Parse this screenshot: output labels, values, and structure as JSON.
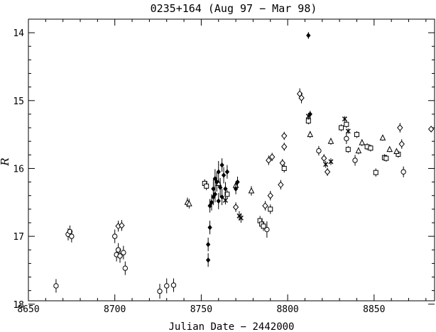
{
  "chart_data": {
    "type": "scatter",
    "title": "0235+164 (Aug 97 − Mar 98)",
    "xlabel": "Julian Date − 2442000",
    "ylabel": "R",
    "xlim": [
      8650,
      8885
    ],
    "ylim": [
      13.8,
      17.95
    ],
    "y_inverted": true,
    "grid": false,
    "x_ticks": [
      "8650",
      "8700",
      "8750",
      "8800",
      "8850"
    ],
    "y_ticks": [
      "14",
      "15",
      "16",
      "17",
      "18"
    ],
    "series": [
      {
        "marker": "circle",
        "points": [
          {
            "x": 8666,
            "y": 17.73,
            "err": 0.1
          },
          {
            "x": 8673,
            "y": 16.97,
            "err": 0.09
          },
          {
            "x": 8674,
            "y": 16.93,
            "err": 0.09
          },
          {
            "x": 8675,
            "y": 17.0,
            "err": 0.09
          },
          {
            "x": 8700,
            "y": 17.0,
            "err": 0.1
          },
          {
            "x": 8701,
            "y": 17.27,
            "err": 0.1
          },
          {
            "x": 8702,
            "y": 17.2,
            "err": 0.1
          },
          {
            "x": 8703,
            "y": 17.29,
            "err": 0.1
          },
          {
            "x": 8705,
            "y": 17.24,
            "err": 0.1
          },
          {
            "x": 8706,
            "y": 17.47,
            "err": 0.1
          },
          {
            "x": 8726,
            "y": 17.81,
            "err": 0.11
          },
          {
            "x": 8730,
            "y": 17.73,
            "err": 0.11
          },
          {
            "x": 8734,
            "y": 17.72,
            "err": 0.1
          },
          {
            "x": 8788,
            "y": 16.9,
            "err": 0.12
          },
          {
            "x": 8818,
            "y": 15.74,
            "err": 0.07
          },
          {
            "x": 8834,
            "y": 15.56,
            "err": 0.08
          },
          {
            "x": 8839,
            "y": 15.88,
            "err": 0.08
          },
          {
            "x": 8867,
            "y": 16.05,
            "err": 0.08
          }
        ]
      },
      {
        "marker": "diamond",
        "points": [
          {
            "x": 8702,
            "y": 16.85,
            "err": 0.08
          },
          {
            "x": 8704,
            "y": 16.84,
            "err": 0.08
          },
          {
            "x": 8770,
            "y": 16.57,
            "err": 0.07
          },
          {
            "x": 8787,
            "y": 16.55,
            "err": 0.07
          },
          {
            "x": 8789,
            "y": 15.88,
            "err": 0.07
          },
          {
            "x": 8790,
            "y": 16.4,
            "err": 0.07
          },
          {
            "x": 8791,
            "y": 15.83,
            "err": 0.06
          },
          {
            "x": 8796,
            "y": 16.24,
            "err": 0.07
          },
          {
            "x": 8797,
            "y": 15.92,
            "err": 0.06
          },
          {
            "x": 8798,
            "y": 15.52,
            "err": 0.06
          },
          {
            "x": 8798,
            "y": 15.68,
            "err": 0.06
          },
          {
            "x": 8807,
            "y": 14.9,
            "err": 0.08
          },
          {
            "x": 8808,
            "y": 14.96,
            "err": 0.08
          },
          {
            "x": 8821,
            "y": 15.85,
            "err": 0.06
          },
          {
            "x": 8823,
            "y": 16.05,
            "err": 0.06
          },
          {
            "x": 8865,
            "y": 15.4,
            "err": 0.07
          },
          {
            "x": 8866,
            "y": 15.64,
            "err": 0.07
          },
          {
            "x": 8883,
            "y": 15.42,
            "err": 0.04
          }
        ]
      },
      {
        "marker": "square",
        "points": [
          {
            "x": 8752,
            "y": 16.22,
            "err": 0.06
          },
          {
            "x": 8753,
            "y": 16.26,
            "err": 0.06
          },
          {
            "x": 8765,
            "y": 16.38,
            "err": 0.06
          },
          {
            "x": 8784,
            "y": 16.77,
            "err": 0.07
          },
          {
            "x": 8785,
            "y": 16.82,
            "err": 0.07
          },
          {
            "x": 8786,
            "y": 16.85,
            "err": 0.07
          },
          {
            "x": 8790,
            "y": 16.6,
            "err": 0.07
          },
          {
            "x": 8798,
            "y": 16.0,
            "err": 0.06
          },
          {
            "x": 8812,
            "y": 15.3,
            "err": 0.05
          },
          {
            "x": 8831,
            "y": 15.4,
            "err": 0.05
          },
          {
            "x": 8834,
            "y": 15.35,
            "err": 0.05
          },
          {
            "x": 8835,
            "y": 15.72,
            "err": 0.05
          },
          {
            "x": 8840,
            "y": 15.5,
            "err": 0.05
          },
          {
            "x": 8846,
            "y": 15.68,
            "err": 0.05
          },
          {
            "x": 8848,
            "y": 15.7,
            "err": 0.05
          },
          {
            "x": 8851,
            "y": 16.06,
            "err": 0.06
          },
          {
            "x": 8856,
            "y": 15.84,
            "err": 0.05
          },
          {
            "x": 8857,
            "y": 15.85,
            "err": 0.05
          },
          {
            "x": 8864,
            "y": 15.79,
            "err": 0.05
          }
        ]
      },
      {
        "marker": "triangle",
        "points": [
          {
            "x": 8742,
            "y": 16.5,
            "err": 0.07
          },
          {
            "x": 8743,
            "y": 16.52,
            "err": 0.07
          },
          {
            "x": 8760,
            "y": 16.22,
            "err": 0.06
          },
          {
            "x": 8770,
            "y": 16.25,
            "err": 0.06
          },
          {
            "x": 8779,
            "y": 16.33,
            "err": 0.07
          },
          {
            "x": 8813,
            "y": 15.5,
            "err": 0.05
          },
          {
            "x": 8825,
            "y": 15.6,
            "err": 0.05
          },
          {
            "x": 8841,
            "y": 15.74,
            "err": 0.05
          },
          {
            "x": 8843,
            "y": 15.62,
            "err": 0.05
          },
          {
            "x": 8855,
            "y": 15.55,
            "err": 0.04
          },
          {
            "x": 8859,
            "y": 15.72,
            "err": 0.04
          },
          {
            "x": 8863,
            "y": 15.75,
            "err": 0.04
          }
        ]
      },
      {
        "marker": "cross",
        "points": [
          {
            "x": 8764,
            "y": 16.47,
            "err": 0.06
          },
          {
            "x": 8772,
            "y": 16.7,
            "err": 0.07
          },
          {
            "x": 8773,
            "y": 16.73,
            "err": 0.07
          },
          {
            "x": 8812,
            "y": 15.23,
            "err": 0.05
          },
          {
            "x": 8822,
            "y": 15.94,
            "err": 0.05
          },
          {
            "x": 8825,
            "y": 15.9,
            "err": 0.05
          },
          {
            "x": 8833,
            "y": 15.27,
            "err": 0.04
          },
          {
            "x": 8835,
            "y": 15.45,
            "err": 0.04
          }
        ]
      },
      {
        "marker": "filled-diamond",
        "points": [
          {
            "x": 8754,
            "y": 17.35,
            "err": 0.1
          },
          {
            "x": 8754,
            "y": 17.12,
            "err": 0.1
          },
          {
            "x": 8755,
            "y": 16.87,
            "err": 0.1
          },
          {
            "x": 8755,
            "y": 16.55,
            "err": 0.1
          },
          {
            "x": 8756,
            "y": 16.5,
            "err": 0.12
          },
          {
            "x": 8757,
            "y": 16.3,
            "err": 0.14
          },
          {
            "x": 8757,
            "y": 16.42,
            "err": 0.12
          },
          {
            "x": 8758,
            "y": 16.15,
            "err": 0.14
          },
          {
            "x": 8758,
            "y": 16.38,
            "err": 0.12
          },
          {
            "x": 8759,
            "y": 16.2,
            "err": 0.14
          },
          {
            "x": 8760,
            "y": 16.05,
            "err": 0.16
          },
          {
            "x": 8760,
            "y": 16.48,
            "err": 0.12
          },
          {
            "x": 8761,
            "y": 16.28,
            "err": 0.14
          },
          {
            "x": 8762,
            "y": 15.95,
            "err": 0.1
          },
          {
            "x": 8762,
            "y": 16.42,
            "err": 0.12
          },
          {
            "x": 8763,
            "y": 16.1,
            "err": 0.12
          },
          {
            "x": 8764,
            "y": 16.3,
            "err": 0.1
          },
          {
            "x": 8765,
            "y": 16.05,
            "err": 0.1
          },
          {
            "x": 8770,
            "y": 16.3,
            "err": 0.08
          },
          {
            "x": 8771,
            "y": 16.2,
            "err": 0.08
          },
          {
            "x": 8812,
            "y": 14.04,
            "err": 0.05
          },
          {
            "x": 8813,
            "y": 15.2,
            "err": 0.05
          }
        ]
      }
    ]
  }
}
